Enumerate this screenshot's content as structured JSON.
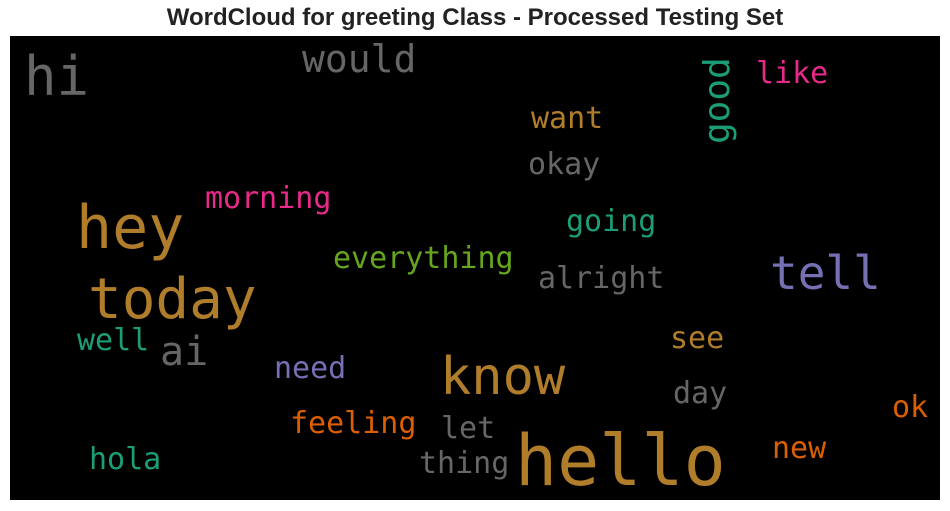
{
  "chart_data": {
    "type": "wordcloud",
    "title": "WordCloud for greeting Class - Processed Testing Set",
    "background": "#000000",
    "words": [
      {
        "text": "hello",
        "color": "#b07d2b",
        "orientation": "horizontal"
      },
      {
        "text": "today",
        "color": "#b07d2b",
        "orientation": "horizontal"
      },
      {
        "text": "hey",
        "color": "#b07d2b",
        "orientation": "horizontal"
      },
      {
        "text": "know",
        "color": "#b07d2b",
        "orientation": "horizontal"
      },
      {
        "text": "hi",
        "color": "#666666",
        "orientation": "horizontal"
      },
      {
        "text": "tell",
        "color": "#7570b3",
        "orientation": "horizontal"
      },
      {
        "text": "would",
        "color": "#666666",
        "orientation": "horizontal"
      },
      {
        "text": "ai",
        "color": "#666666",
        "orientation": "horizontal"
      },
      {
        "text": "good",
        "color": "#1b9e77",
        "orientation": "vertical"
      },
      {
        "text": "everything",
        "color": "#66a61e",
        "orientation": "horizontal"
      },
      {
        "text": "alright",
        "color": "#666666",
        "orientation": "horizontal"
      },
      {
        "text": "morning",
        "color": "#e7298a",
        "orientation": "horizontal"
      },
      {
        "text": "going",
        "color": "#1b9e77",
        "orientation": "horizontal"
      },
      {
        "text": "feeling",
        "color": "#d95f02",
        "orientation": "horizontal"
      },
      {
        "text": "thing",
        "color": "#666666",
        "orientation": "horizontal"
      },
      {
        "text": "want",
        "color": "#b07d2b",
        "orientation": "horizontal"
      },
      {
        "text": "okay",
        "color": "#666666",
        "orientation": "horizontal"
      },
      {
        "text": "like",
        "color": "#e7298a",
        "orientation": "horizontal"
      },
      {
        "text": "well",
        "color": "#1b9e77",
        "orientation": "horizontal"
      },
      {
        "text": "need",
        "color": "#7570b3",
        "orientation": "horizontal"
      },
      {
        "text": "see",
        "color": "#b07d2b",
        "orientation": "horizontal"
      },
      {
        "text": "day",
        "color": "#666666",
        "orientation": "horizontal"
      },
      {
        "text": "let",
        "color": "#666666",
        "orientation": "horizontal"
      },
      {
        "text": "hola",
        "color": "#1b9e77",
        "orientation": "horizontal"
      },
      {
        "text": "new",
        "color": "#d95f02",
        "orientation": "horizontal"
      },
      {
        "text": "ok",
        "color": "#d95f02",
        "orientation": "horizontal"
      }
    ]
  }
}
